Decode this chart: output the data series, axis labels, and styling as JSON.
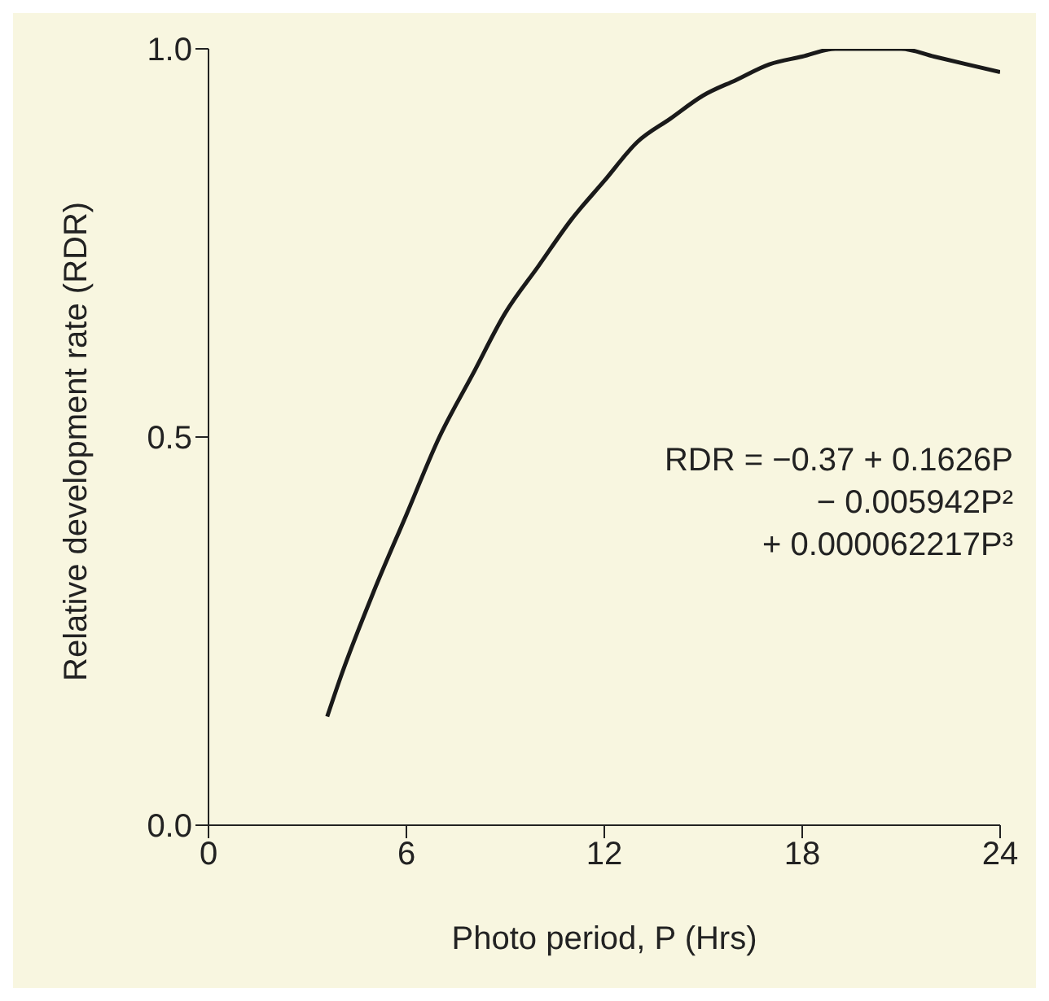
{
  "chart_data": {
    "type": "line",
    "xlabel": "Photo period, P (Hrs)",
    "ylabel": "Relative development rate (RDR)",
    "x": [
      3.6,
      4,
      5,
      6,
      7,
      8,
      9,
      10,
      11,
      12,
      13,
      14,
      15,
      16,
      17,
      18,
      19,
      20,
      21,
      22,
      23,
      24
    ],
    "series": [
      {
        "color": "#1a1a1a",
        "values": [
          0.14,
          0.19,
          0.3,
          0.4,
          0.5,
          0.58,
          0.66,
          0.72,
          0.78,
          0.83,
          0.88,
          0.91,
          0.94,
          0.96,
          0.98,
          0.99,
          1.0,
          1.0,
          1.0,
          0.99,
          0.98,
          0.97
        ]
      }
    ],
    "xlim": [
      0,
      24
    ],
    "xticks": [
      0,
      6,
      12,
      18,
      24
    ],
    "ylim": [
      0,
      1
    ],
    "yticks": [
      {
        "value": 0,
        "label": "0.0"
      },
      {
        "value": 0.5,
        "label": "0.5"
      },
      {
        "value": 1,
        "label": "1.0"
      }
    ],
    "grid": false,
    "legend": false,
    "annotations": [
      "RDR = −0.37 + 0.1626P",
      "− 0.005942P²",
      "+ 0.000062217P³"
    ]
  }
}
